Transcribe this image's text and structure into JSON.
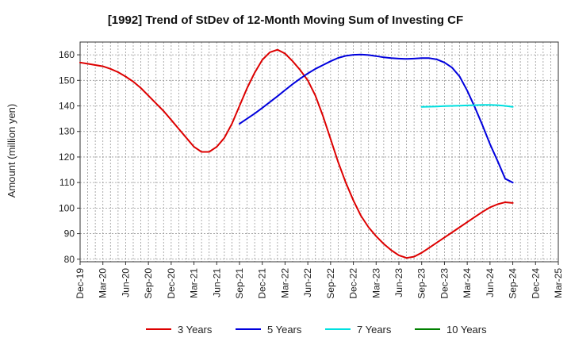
{
  "chart_data": {
    "type": "line",
    "title": "[1992]  Trend of StDev of 12-Month Moving Sum of Investing CF",
    "xlabel": "",
    "ylabel": "Amount (million yen)",
    "ylim": [
      79,
      165
    ],
    "yticks": [
      80,
      90,
      100,
      110,
      120,
      130,
      140,
      150,
      160
    ],
    "xlim": [
      "Dec-19",
      "Mar-25"
    ],
    "xticks": [
      "Dec-19",
      "Mar-20",
      "Jun-20",
      "Sep-20",
      "Dec-20",
      "Mar-21",
      "Jun-21",
      "Sep-21",
      "Dec-21",
      "Mar-22",
      "Jun-22",
      "Sep-22",
      "Dec-22",
      "Mar-23",
      "Jun-23",
      "Sep-23",
      "Dec-23",
      "Mar-24",
      "Jun-24",
      "Sep-24",
      "Dec-24",
      "Mar-25"
    ],
    "grid": true,
    "legend_position": "bottom",
    "series": [
      {
        "name": "3 Years",
        "color": "#dd0000",
        "x": [
          "Dec-19",
          "Jan-20",
          "Feb-20",
          "Mar-20",
          "Apr-20",
          "May-20",
          "Jun-20",
          "Jul-20",
          "Aug-20",
          "Sep-20",
          "Oct-20",
          "Nov-20",
          "Dec-20",
          "Jan-21",
          "Feb-21",
          "Mar-21",
          "Apr-21",
          "May-21",
          "Jun-21",
          "Jul-21",
          "Aug-21",
          "Sep-21",
          "Oct-21",
          "Nov-21",
          "Dec-21",
          "Jan-22",
          "Feb-22",
          "Mar-22",
          "Apr-22",
          "May-22",
          "Jun-22",
          "Jul-22",
          "Aug-22",
          "Sep-22",
          "Oct-22",
          "Nov-22",
          "Dec-22",
          "Jan-23",
          "Feb-23",
          "Mar-23",
          "Apr-23",
          "May-23",
          "Jun-23",
          "Jul-23",
          "Aug-23",
          "Sep-23",
          "Oct-23",
          "Nov-23",
          "Dec-23",
          "Jan-24",
          "Feb-24",
          "Mar-24",
          "Apr-24",
          "May-24",
          "Jun-24",
          "Jul-24",
          "Aug-24",
          "Sep-24"
        ],
        "values": [
          157,
          156.5,
          156,
          155.5,
          154.5,
          153.2,
          151.5,
          149.5,
          147,
          144,
          141,
          138,
          134.5,
          131,
          127.5,
          124,
          122,
          122,
          124,
          127.5,
          133,
          140,
          147,
          153,
          158,
          161,
          162,
          160.5,
          157.5,
          154,
          150,
          144,
          136,
          127,
          118,
          110,
          103,
          97,
          92.5,
          89,
          86,
          83.5,
          81.5,
          80.5,
          81,
          82.5,
          84.5,
          86.5,
          88.5,
          90.5,
          92.5,
          94.5,
          96.5,
          98.5,
          100.3,
          101.5,
          102.3,
          102
        ]
      },
      {
        "name": "5 Years",
        "color": "#0000dd",
        "x": [
          "Sep-21",
          "Oct-21",
          "Nov-21",
          "Dec-21",
          "Jan-22",
          "Feb-22",
          "Mar-22",
          "Apr-22",
          "May-22",
          "Jun-22",
          "Jul-22",
          "Aug-22",
          "Sep-22",
          "Oct-22",
          "Nov-22",
          "Dec-22",
          "Jan-23",
          "Feb-23",
          "Mar-23",
          "Apr-23",
          "May-23",
          "Jun-23",
          "Jul-23",
          "Aug-23",
          "Sep-23",
          "Oct-23",
          "Nov-23",
          "Dec-23",
          "Jan-24",
          "Feb-24",
          "Mar-24",
          "Apr-24",
          "May-24",
          "Jun-24",
          "Jul-24",
          "Aug-24",
          "Sep-24"
        ],
        "values": [
          133,
          135,
          137,
          139.2,
          141.5,
          143.8,
          146.2,
          148.5,
          150.7,
          152.7,
          154.5,
          156,
          157.5,
          158.8,
          159.6,
          160,
          160.1,
          159.9,
          159.5,
          159,
          158.7,
          158.5,
          158.4,
          158.5,
          158.7,
          158.7,
          158.2,
          157,
          155,
          151.5,
          146,
          139.5,
          132.5,
          125,
          118.5,
          111.5,
          110
        ]
      },
      {
        "name": "7 Years",
        "color": "#00e0e0",
        "x": [
          "Sep-23",
          "Oct-23",
          "Nov-23",
          "Dec-23",
          "Jan-24",
          "Feb-24",
          "Mar-24",
          "Apr-24",
          "May-24",
          "Jun-24",
          "Jul-24",
          "Aug-24",
          "Sep-24"
        ],
        "values": [
          139.6,
          139.7,
          139.8,
          139.9,
          140,
          140.1,
          140.2,
          140.3,
          140.4,
          140.4,
          140.3,
          140,
          139.6
        ]
      },
      {
        "name": "10 Years",
        "color": "#008000",
        "x": [],
        "values": []
      }
    ]
  }
}
